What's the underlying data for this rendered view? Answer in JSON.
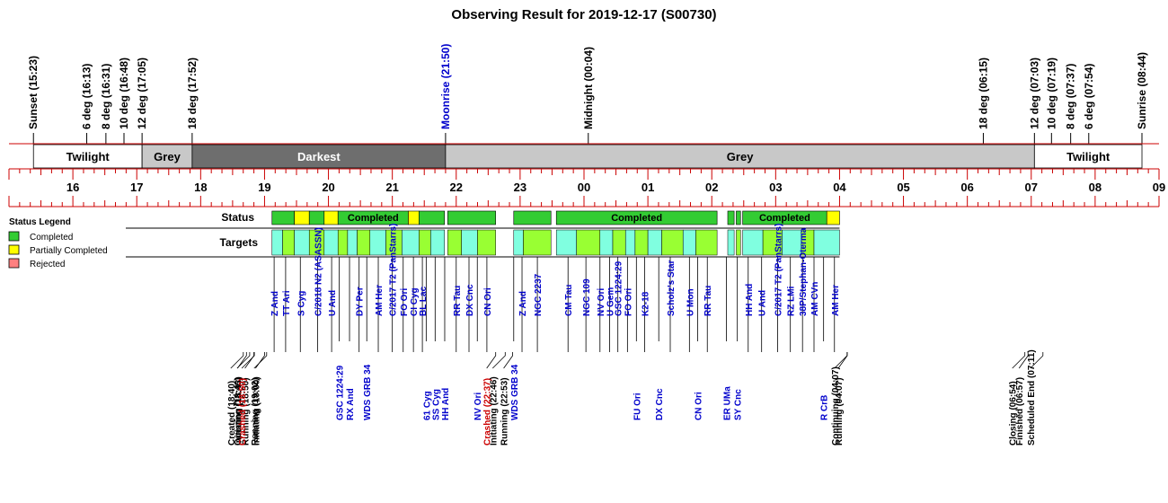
{
  "title": "Observing Result for 2019-12-17 (S00730)",
  "colors": {
    "completed": "#33cc33",
    "partial": "#ffff00",
    "rejected": "#ff8080",
    "light_green": "#99ff33",
    "cyan": "#80ffe0",
    "grey": "#c8c8c8",
    "darkest": "#6e6e6e",
    "red_line": "#cc0000",
    "blue_text": "#0000cc"
  },
  "chart_data": {
    "type": "table",
    "hour_ticks": [
      "16",
      "17",
      "18",
      "19",
      "20",
      "21",
      "22",
      "23",
      "00",
      "01",
      "02",
      "03",
      "04",
      "05",
      "06",
      "07",
      "08",
      "09"
    ],
    "sky_events": [
      {
        "label": "Sunset (15:23)",
        "t": 15.383,
        "color": "black"
      },
      {
        "label": "6 deg (16:13)",
        "t": 16.217,
        "color": "black"
      },
      {
        "label": "8 deg (16:31)",
        "t": 16.517,
        "color": "black"
      },
      {
        "label": "10 deg (16:48)",
        "t": 16.8,
        "color": "black"
      },
      {
        "label": "12 deg (17:05)",
        "t": 17.083,
        "color": "black"
      },
      {
        "label": "18 deg (17:52)",
        "t": 17.867,
        "color": "black"
      },
      {
        "label": "Moonrise (21:50)",
        "t": 21.833,
        "color": "blue"
      },
      {
        "label": "Midnight (00:04)",
        "t": 24.067,
        "color": "black"
      },
      {
        "label": "18 deg (06:15)",
        "t": 30.25,
        "color": "black"
      },
      {
        "label": "12 deg (07:03)",
        "t": 31.05,
        "color": "black"
      },
      {
        "label": "10 deg (07:19)",
        "t": 31.317,
        "color": "black"
      },
      {
        "label": "8 deg (07:37)",
        "t": 31.617,
        "color": "black"
      },
      {
        "label": "6 deg (07:54)",
        "t": 31.9,
        "color": "black"
      },
      {
        "label": "Sunrise (08:44)",
        "t": 32.733,
        "color": "black"
      }
    ],
    "sky_bands": [
      {
        "label": "Twilight",
        "start": 15.383,
        "end": 17.083,
        "fill": "white",
        "text": "black"
      },
      {
        "label": "Grey",
        "start": 17.083,
        "end": 17.867,
        "fill": "grey",
        "text": "black"
      },
      {
        "label": "Darkest",
        "start": 17.867,
        "end": 21.833,
        "fill": "darkest",
        "text": "white"
      },
      {
        "label": "Grey",
        "start": 21.833,
        "end": 31.05,
        "fill": "grey",
        "text": "black"
      },
      {
        "label": "Twilight",
        "start": 31.05,
        "end": 32.733,
        "fill": "white",
        "text": "black"
      }
    ],
    "row_labels": {
      "status": "Status",
      "targets": "Targets"
    },
    "legend": {
      "title": "Status Legend",
      "items": [
        {
          "label": "Completed",
          "color": "completed"
        },
        {
          "label": "Partially Completed",
          "color": "partial"
        },
        {
          "label": "Rejected",
          "color": "rejected"
        }
      ]
    },
    "status_blocks": [
      {
        "start": 19.117,
        "end": 19.467,
        "state": "completed",
        "label": ""
      },
      {
        "start": 19.467,
        "end": 19.7,
        "state": "partial",
        "label": ""
      },
      {
        "start": 19.7,
        "end": 19.933,
        "state": "completed",
        "label": ""
      },
      {
        "start": 19.933,
        "end": 20.15,
        "state": "partial",
        "label": ""
      },
      {
        "start": 20.15,
        "end": 21.25,
        "state": "completed",
        "label": "Completed"
      },
      {
        "start": 21.25,
        "end": 21.417,
        "state": "partial",
        "label": ""
      },
      {
        "start": 21.417,
        "end": 21.817,
        "state": "completed",
        "label": ""
      },
      {
        "start": 21.867,
        "end": 22.617,
        "state": "completed",
        "label": ""
      },
      {
        "start": 22.9,
        "end": 23.483,
        "state": "completed",
        "label": ""
      },
      {
        "start": 23.567,
        "end": 26.083,
        "state": "completed",
        "label": "Completed"
      },
      {
        "start": 26.25,
        "end": 26.35,
        "state": "completed",
        "label": ""
      },
      {
        "start": 26.383,
        "end": 26.45,
        "state": "completed",
        "label": ""
      },
      {
        "start": 26.483,
        "end": 27.8,
        "state": "completed",
        "label": "Completed"
      },
      {
        "start": 27.8,
        "end": 28.0,
        "state": "partial",
        "label": ""
      }
    ],
    "target_blocks": [
      {
        "start": 19.117,
        "end": 19.283,
        "color": "cyan"
      },
      {
        "start": 19.283,
        "end": 19.467,
        "color": "light_green"
      },
      {
        "start": 19.467,
        "end": 19.7,
        "color": "cyan"
      },
      {
        "start": 19.7,
        "end": 19.933,
        "color": "light_green"
      },
      {
        "start": 19.933,
        "end": 20.15,
        "color": "cyan"
      },
      {
        "start": 20.15,
        "end": 20.3,
        "color": "light_green"
      },
      {
        "start": 20.3,
        "end": 20.45,
        "color": "cyan"
      },
      {
        "start": 20.45,
        "end": 20.65,
        "color": "light_green"
      },
      {
        "start": 20.65,
        "end": 20.9,
        "color": "cyan"
      },
      {
        "start": 20.9,
        "end": 21.15,
        "color": "light_green"
      },
      {
        "start": 21.15,
        "end": 21.417,
        "color": "cyan"
      },
      {
        "start": 21.417,
        "end": 21.6,
        "color": "light_green"
      },
      {
        "start": 21.6,
        "end": 21.817,
        "color": "cyan"
      },
      {
        "start": 21.867,
        "end": 22.083,
        "color": "light_green"
      },
      {
        "start": 22.083,
        "end": 22.333,
        "color": "cyan"
      },
      {
        "start": 22.333,
        "end": 22.617,
        "color": "light_green"
      },
      {
        "start": 22.9,
        "end": 23.05,
        "color": "cyan"
      },
      {
        "start": 23.05,
        "end": 23.483,
        "color": "light_green"
      },
      {
        "start": 23.567,
        "end": 23.883,
        "color": "cyan"
      },
      {
        "start": 23.883,
        "end": 24.25,
        "color": "light_green"
      },
      {
        "start": 24.25,
        "end": 24.45,
        "color": "cyan"
      },
      {
        "start": 24.45,
        "end": 24.65,
        "color": "light_green"
      },
      {
        "start": 24.65,
        "end": 24.8,
        "color": "cyan"
      },
      {
        "start": 24.8,
        "end": 25.0,
        "color": "light_green"
      },
      {
        "start": 25.0,
        "end": 25.217,
        "color": "cyan"
      },
      {
        "start": 25.217,
        "end": 25.55,
        "color": "light_green"
      },
      {
        "start": 25.55,
        "end": 25.75,
        "color": "cyan"
      },
      {
        "start": 25.75,
        "end": 26.083,
        "color": "light_green"
      },
      {
        "start": 26.25,
        "end": 26.35,
        "color": "cyan"
      },
      {
        "start": 26.383,
        "end": 26.45,
        "color": "light_green"
      },
      {
        "start": 26.483,
        "end": 26.8,
        "color": "cyan"
      },
      {
        "start": 26.8,
        "end": 27.1,
        "color": "light_green"
      },
      {
        "start": 27.1,
        "end": 27.4,
        "color": "cyan"
      },
      {
        "start": 27.4,
        "end": 27.6,
        "color": "light_green"
      },
      {
        "start": 27.6,
        "end": 28.0,
        "color": "cyan"
      }
    ],
    "target_labels": [
      {
        "label": "Z And",
        "t": 19.15,
        "row": 1
      },
      {
        "label": "TT Ari",
        "t": 19.33,
        "row": 1
      },
      {
        "label": "S Cyg",
        "t": 19.56,
        "row": 1
      },
      {
        "label": "C/2018 N2 (ASASSN)",
        "t": 19.83,
        "row": 1
      },
      {
        "label": "U And",
        "t": 20.05,
        "row": 1
      },
      {
        "label": "DY Per",
        "t": 20.48,
        "row": 1
      },
      {
        "label": "AM Her",
        "t": 20.78,
        "row": 1
      },
      {
        "label": "C/2017 T2 (PanStarrs)",
        "t": 21.0,
        "row": 1
      },
      {
        "label": "FO Ori",
        "t": 21.17,
        "row": 1
      },
      {
        "label": "CI Cyg",
        "t": 21.33,
        "row": 1
      },
      {
        "label": "BL Lac",
        "t": 21.47,
        "row": 1
      },
      {
        "label": "RR Tau",
        "t": 22.0,
        "row": 1
      },
      {
        "label": "DX Cnc",
        "t": 22.2,
        "row": 1
      },
      {
        "label": "CN Ori",
        "t": 22.48,
        "row": 1
      },
      {
        "label": "Z And",
        "t": 23.03,
        "row": 1
      },
      {
        "label": "NGC 2237",
        "t": 23.27,
        "row": 1
      },
      {
        "label": "CM Tau",
        "t": 23.75,
        "row": 1
      },
      {
        "label": "NGC 109",
        "t": 24.03,
        "row": 1
      },
      {
        "label": "NV Ori",
        "t": 24.25,
        "row": 1
      },
      {
        "label": "U Gem",
        "t": 24.4,
        "row": 1
      },
      {
        "label": "GSC 1224:29",
        "t": 24.53,
        "row": 1
      },
      {
        "label": "FO Ori",
        "t": 24.68,
        "row": 1
      },
      {
        "label": "K2-18",
        "t": 24.95,
        "row": 1
      },
      {
        "label": "Scholz's Star",
        "t": 25.35,
        "row": 1
      },
      {
        "label": "U Mon",
        "t": 25.65,
        "row": 1
      },
      {
        "label": "RR Tau",
        "t": 25.93,
        "row": 1
      },
      {
        "label": "HH And",
        "t": 26.57,
        "row": 1
      },
      {
        "label": "U And",
        "t": 26.78,
        "row": 1
      },
      {
        "label": "C/2017 T2 (PanStarrs)",
        "t": 27.03,
        "row": 1
      },
      {
        "label": "RZ LMi",
        "t": 27.23,
        "row": 1
      },
      {
        "label": "38P/Stephan-Oterma",
        "t": 27.42,
        "row": 1
      },
      {
        "label": "AM CVn",
        "t": 27.6,
        "row": 1
      },
      {
        "label": "AM Her",
        "t": 27.92,
        "row": 1
      },
      {
        "label": "GSC 1224:29",
        "t": 20.17,
        "row": 2
      },
      {
        "label": "RX And",
        "t": 20.33,
        "row": 2
      },
      {
        "label": "WDS GRB 34",
        "t": 20.6,
        "row": 2
      },
      {
        "label": "61 Cyg",
        "t": 21.53,
        "row": 2
      },
      {
        "label": "SS Cyg",
        "t": 21.67,
        "row": 2
      },
      {
        "label": "HH And",
        "t": 21.82,
        "row": 2
      },
      {
        "label": "NV Ori",
        "t": 22.33,
        "row": 2
      },
      {
        "label": "WDS GRB 34",
        "t": 22.9,
        "row": 2
      },
      {
        "label": "FU Ori",
        "t": 24.82,
        "row": 2
      },
      {
        "label": "DX Cnc",
        "t": 25.17,
        "row": 2
      },
      {
        "label": "CN Ori",
        "t": 25.78,
        "row": 2
      },
      {
        "label": "ER UMa",
        "t": 26.23,
        "row": 2
      },
      {
        "label": "SY Cnc",
        "t": 26.4,
        "row": 2
      },
      {
        "label": "R CrB",
        "t": 27.75,
        "row": 2
      }
    ],
    "system_events": [
      {
        "label": "Created (18:40)",
        "t": 18.667,
        "color": "black"
      },
      {
        "label": "Initiating (18:43)",
        "t": 18.717,
        "color": "black"
      },
      {
        "label": "Opening (18:46)",
        "t": 18.767,
        "color": "black"
      },
      {
        "label": "Running (18:50)",
        "t": 18.833,
        "color": "black"
      },
      {
        "label": "Crashed (18:50)",
        "t": 18.84,
        "color": "red"
      },
      {
        "label": "Initiating (19:00)",
        "t": 19.0,
        "color": "black"
      },
      {
        "label": "Running (19:02)",
        "t": 19.033,
        "color": "black"
      },
      {
        "label": "Crashed (22:37)",
        "t": 22.617,
        "color": "red"
      },
      {
        "label": "Initiating (22:46)",
        "t": 22.767,
        "color": "black"
      },
      {
        "label": "Running (22:53)",
        "t": 22.883,
        "color": "black"
      },
      {
        "label": "Continuing (04:07)",
        "t": 28.117,
        "color": "black"
      },
      {
        "label": "Running (04:07)",
        "t": 28.12,
        "color": "black"
      },
      {
        "label": "Closing (06:54)",
        "t": 30.9,
        "color": "black"
      },
      {
        "label": "Finished (06:57)",
        "t": 30.95,
        "color": "black"
      },
      {
        "label": "Scheduled End (07:11)",
        "t": 31.183,
        "color": "black"
      }
    ]
  }
}
